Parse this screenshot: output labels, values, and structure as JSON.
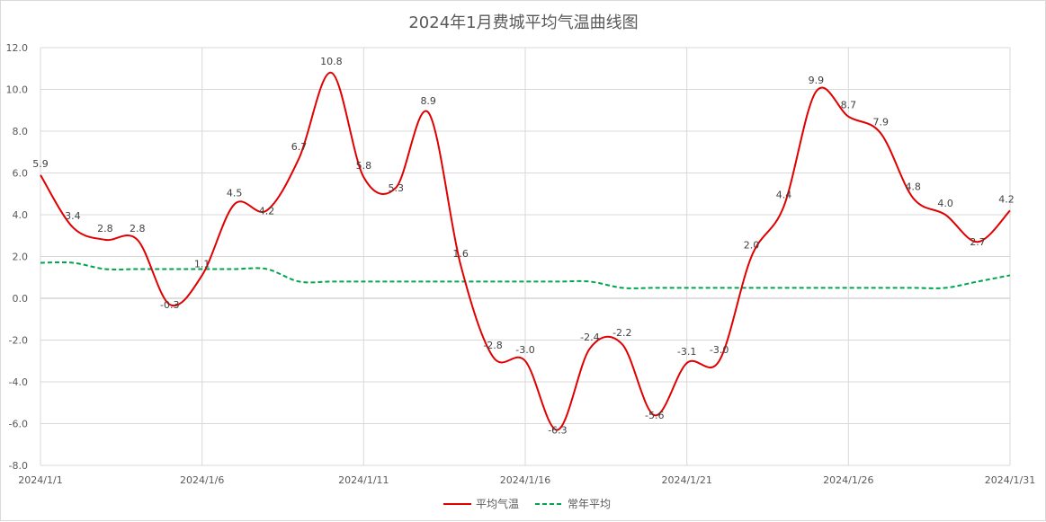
{
  "chart_data": {
    "type": "line",
    "title": "2024年1月费城平均气温曲线图",
    "xlabel": "",
    "ylabel": "",
    "x": [
      "2024/1/1",
      "2024/1/2",
      "2024/1/3",
      "2024/1/4",
      "2024/1/5",
      "2024/1/6",
      "2024/1/7",
      "2024/1/8",
      "2024/1/9",
      "2024/1/10",
      "2024/1/11",
      "2024/1/12",
      "2024/1/13",
      "2024/1/14",
      "2024/1/15",
      "2024/1/16",
      "2024/1/17",
      "2024/1/18",
      "2024/1/19",
      "2024/1/20",
      "2024/1/21",
      "2024/1/22",
      "2024/1/23",
      "2024/1/24",
      "2024/1/25",
      "2024/1/26",
      "2024/1/27",
      "2024/1/28",
      "2024/1/29",
      "2024/1/30",
      "2024/1/31"
    ],
    "x_tick_labels": [
      "2024/1/1",
      "2024/1/6",
      "2024/1/11",
      "2024/1/16",
      "2024/1/21",
      "2024/1/26",
      "2024/1/31"
    ],
    "y_tick_labels": [
      "12.0",
      "10.0",
      "8.0",
      "6.0",
      "4.0",
      "2.0",
      "0.0",
      "-2.0",
      "-4.0",
      "-6.0",
      "-8.0"
    ],
    "ylim": [
      -8,
      12
    ],
    "grid": true,
    "legend_position": "bottom",
    "series": [
      {
        "name": "平均气温",
        "color": "#e00000",
        "style": "solid",
        "values": [
          5.9,
          3.4,
          2.8,
          2.8,
          -0.3,
          1.1,
          4.5,
          4.2,
          6.7,
          10.8,
          5.8,
          5.3,
          8.9,
          1.6,
          -2.8,
          -3.0,
          -6.3,
          -2.4,
          -2.2,
          -5.6,
          -3.1,
          -3.0,
          2.0,
          4.4,
          9.9,
          8.7,
          7.9,
          4.8,
          4.0,
          2.7,
          4.2
        ],
        "data_labels": [
          "5.9",
          "3.4",
          "2.8",
          "2.8",
          "-0.3",
          "1.1",
          "4.5",
          "4.2",
          "6.7",
          "10.8",
          "5.8",
          "5.3",
          "8.9",
          "1.6",
          "-2.8",
          "-3.0",
          "-6.3",
          "-2.4",
          "-2.2",
          "-5.6",
          "-3.1",
          "-3.0",
          "2.0",
          "4.4",
          "9.9",
          "8.7",
          "7.9",
          "4.8",
          "4.0",
          "2.7",
          "4.2"
        ]
      },
      {
        "name": "常年平均",
        "color": "#00a550",
        "style": "dashed",
        "values": [
          1.7,
          1.7,
          1.4,
          1.4,
          1.4,
          1.4,
          1.4,
          1.4,
          0.8,
          0.8,
          0.8,
          0.8,
          0.8,
          0.8,
          0.8,
          0.8,
          0.8,
          0.8,
          0.5,
          0.5,
          0.5,
          0.5,
          0.5,
          0.5,
          0.5,
          0.5,
          0.5,
          0.5,
          0.5,
          0.8,
          1.1
        ]
      }
    ]
  }
}
